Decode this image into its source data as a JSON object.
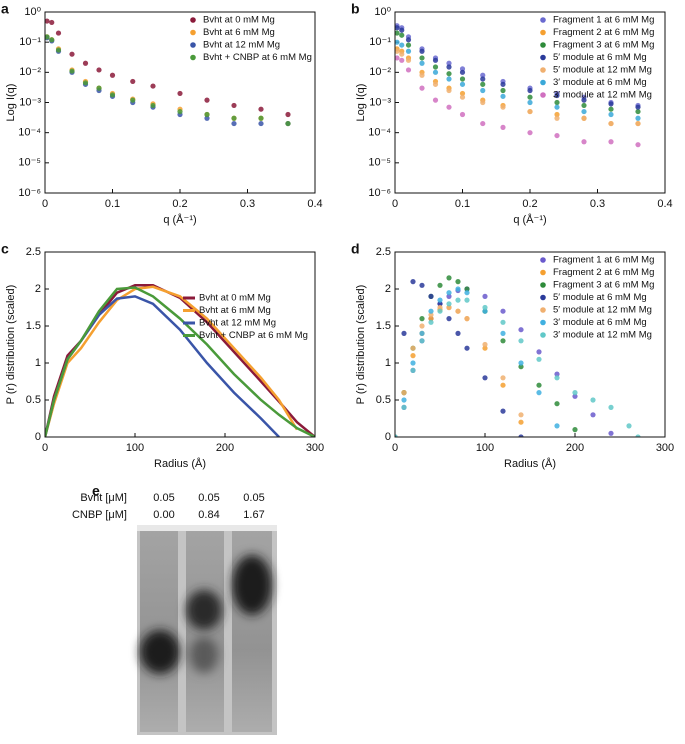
{
  "chart_data": [
    {
      "type": "scatter",
      "panel": "a",
      "ylabel": "Log I(q)",
      "xlabel": "q (Å⁻¹)",
      "ylog": true,
      "legend": "upper right",
      "xlim": [
        0,
        0.4
      ],
      "xticks": [
        0,
        0.1,
        0.2,
        0.3,
        0.4
      ],
      "ylim": [
        1e-06,
        1
      ],
      "yticks": [
        {
          "value": 1,
          "label": "10⁰"
        },
        {
          "value": 0.1,
          "label": "10⁻¹"
        },
        {
          "value": 0.01,
          "label": "10⁻²"
        },
        {
          "value": 0.001,
          "label": "10⁻³"
        },
        {
          "value": 0.0001,
          "label": "10⁻⁴"
        },
        {
          "value": 1e-05,
          "label": "10⁻⁵"
        },
        {
          "value": 1e-06,
          "label": "10⁻⁶"
        }
      ],
      "x": [
        0.003,
        0.01,
        0.02,
        0.04,
        0.06,
        0.08,
        0.1,
        0.13,
        0.16,
        0.2,
        0.24,
        0.28,
        0.32,
        0.36
      ],
      "series": [
        {
          "name": "Bvht at 0 mM Mg",
          "color": "#8b1a3a",
          "values": [
            0.5,
            0.45,
            0.2,
            0.04,
            0.02,
            0.012,
            0.008,
            0.005,
            0.0035,
            0.002,
            0.0012,
            0.0008,
            0.0006,
            0.0004
          ]
        },
        {
          "name": "Bvht at 6 mM Mg",
          "color": "#f5a030",
          "values": [
            0.15,
            0.12,
            0.06,
            0.012,
            0.005,
            0.003,
            0.002,
            0.0013,
            0.0009,
            0.0006,
            0.0004,
            0.0003,
            0.0003,
            0.0002
          ]
        },
        {
          "name": "Bvht at 12 mM Mg",
          "color": "#3a55a8",
          "values": [
            0.14,
            0.11,
            0.05,
            0.01,
            0.004,
            0.0025,
            0.0016,
            0.001,
            0.0007,
            0.0004,
            0.0003,
            0.0002,
            0.0002,
            0.0002
          ]
        },
        {
          "name": "Bvht + CNBP at 6 mM Mg",
          "color": "#4a9a3a",
          "values": [
            0.15,
            0.12,
            0.055,
            0.011,
            0.0045,
            0.003,
            0.0018,
            0.0012,
            0.0008,
            0.0005,
            0.0004,
            0.0003,
            0.0003,
            0.0002
          ]
        }
      ]
    },
    {
      "type": "scatter",
      "panel": "b",
      "ylabel": "Log I(q)",
      "xlabel": "q (Å⁻¹)",
      "ylog": true,
      "legend": "upper right",
      "xlim": [
        0,
        0.4
      ],
      "xticks": [
        0,
        0.1,
        0.2,
        0.3,
        0.4
      ],
      "ylim": [
        1e-06,
        1
      ],
      "yticks": [
        {
          "value": 1,
          "label": "10⁰"
        },
        {
          "value": 0.1,
          "label": "10⁻¹"
        },
        {
          "value": 0.01,
          "label": "10⁻²"
        },
        {
          "value": 0.001,
          "label": "10⁻³"
        },
        {
          "value": 0.0001,
          "label": "10⁻⁴"
        },
        {
          "value": 1e-05,
          "label": "10⁻⁵"
        },
        {
          "value": 1e-06,
          "label": "10⁻⁶"
        }
      ],
      "x": [
        0.003,
        0.01,
        0.02,
        0.04,
        0.06,
        0.08,
        0.1,
        0.13,
        0.16,
        0.2,
        0.24,
        0.28,
        0.32,
        0.36
      ],
      "series": [
        {
          "name": "Fragment 1 at 6 mM Mg",
          "color": "#6a6ad0",
          "values": [
            0.35,
            0.3,
            0.15,
            0.06,
            0.03,
            0.02,
            0.013,
            0.008,
            0.005,
            0.003,
            0.002,
            0.0015,
            0.001,
            0.0008
          ]
        },
        {
          "name": "Fragment 2 at 6 mM Mg",
          "color": "#f5a030",
          "values": [
            0.06,
            0.05,
            0.03,
            0.01,
            0.005,
            0.003,
            0.002,
            0.0012,
            0.0008,
            0.0005,
            0.0004,
            0.0003,
            0.0002,
            0.0002
          ]
        },
        {
          "name": "Fragment 3 at 6 mM Mg",
          "color": "#2e8b3a",
          "values": [
            0.2,
            0.17,
            0.08,
            0.03,
            0.015,
            0.009,
            0.006,
            0.004,
            0.0025,
            0.0015,
            0.001,
            0.0008,
            0.0006,
            0.0005
          ]
        },
        {
          "name": "5′ module at 6 mM Mg",
          "color": "#2a3a9a",
          "values": [
            0.3,
            0.25,
            0.12,
            0.05,
            0.025,
            0.015,
            0.01,
            0.006,
            0.004,
            0.0025,
            0.0017,
            0.0012,
            0.0009,
            0.0007
          ]
        },
        {
          "name": "5′ module at 12 mM Mg",
          "color": "#f0b070",
          "values": [
            0.05,
            0.04,
            0.025,
            0.008,
            0.004,
            0.0025,
            0.0015,
            0.001,
            0.0007,
            0.0005,
            0.0003,
            0.0003,
            0.0002,
            0.0002
          ]
        },
        {
          "name": "3′ module at 6 mM Mg",
          "color": "#3aa8d8",
          "values": [
            0.1,
            0.08,
            0.05,
            0.02,
            0.01,
            0.006,
            0.004,
            0.0025,
            0.0016,
            0.001,
            0.0007,
            0.0005,
            0.0004,
            0.0003
          ]
        },
        {
          "name": "3′ module at 12 mM Mg",
          "color": "#d070c0",
          "values": [
            0.03,
            0.025,
            0.012,
            0.003,
            0.0012,
            0.0007,
            0.0004,
            0.0002,
            0.00015,
            0.0001,
            8e-05,
            5e-05,
            5e-05,
            4e-05
          ]
        }
      ]
    },
    {
      "type": "line",
      "panel": "c",
      "ylabel": "P (r) distribution (scaled)",
      "xlabel": "Radius (Å)",
      "legend": "upper right",
      "xlim": [
        0,
        300
      ],
      "xticks": [
        0,
        100,
        200,
        300
      ],
      "ylim": [
        0,
        2.5
      ],
      "yticks": [
        0,
        0.5,
        1,
        1.5,
        2,
        2.5
      ],
      "x": [
        0,
        10,
        25,
        40,
        60,
        80,
        100,
        120,
        150,
        180,
        210,
        240,
        260,
        280,
        300
      ],
      "series": [
        {
          "name": "Bvht at 0 mM Mg",
          "color": "#8b1a3a",
          "values": [
            0,
            0.55,
            1.1,
            1.3,
            1.65,
            1.95,
            2.05,
            2.05,
            1.88,
            1.55,
            1.15,
            0.75,
            0.48,
            0.2,
            0
          ]
        },
        {
          "name": "Bvht at 6 mM Mg",
          "color": "#f5a030",
          "values": [
            0,
            0.45,
            1.0,
            1.2,
            1.55,
            1.85,
            2.0,
            2.03,
            1.9,
            1.6,
            1.2,
            0.8,
            0.5,
            0.1,
            null
          ]
        },
        {
          "name": "Bvht at 12 mM Mg",
          "color": "#3a55a8",
          "values": [
            0,
            0.5,
            1.05,
            1.3,
            1.65,
            1.87,
            1.9,
            1.8,
            1.45,
            1.0,
            0.6,
            0.25,
            0,
            null,
            null
          ]
        },
        {
          "name": "Bvht + CNBP at 6 mM Mg",
          "color": "#4a9a3a",
          "values": [
            0,
            0.5,
            1.05,
            1.3,
            1.7,
            2.0,
            2.02,
            1.9,
            1.6,
            1.25,
            0.85,
            0.5,
            0.3,
            0.12,
            0
          ]
        }
      ]
    },
    {
      "type": "scatter",
      "panel": "d",
      "ylabel": "P (r) distribution (scaled)",
      "xlabel": "Radius (Å)",
      "legend": "upper right",
      "xlim": [
        0,
        300
      ],
      "xticks": [
        0,
        100,
        200,
        300
      ],
      "ylim": [
        0,
        2.5
      ],
      "yticks": [
        0,
        0.5,
        1,
        1.5,
        2,
        2.5
      ],
      "x": [
        0,
        10,
        20,
        30,
        40,
        50,
        60,
        70,
        80,
        100,
        120,
        140,
        160,
        180,
        200,
        220,
        240,
        260,
        270
      ],
      "series": [
        {
          "name": "Fragment 1 at 6 mM Mg",
          "color": "#6a5acd",
          "values": [
            0,
            0.4,
            0.9,
            1.3,
            1.6,
            1.8,
            1.9,
            1.98,
            2.0,
            1.9,
            1.7,
            1.45,
            1.15,
            0.85,
            0.55,
            0.3,
            0.05,
            null,
            null
          ]
        },
        {
          "name": "Fragment 2 at 6 mM Mg",
          "color": "#f5a030",
          "values": [
            0,
            0.6,
            1.1,
            1.4,
            1.6,
            1.72,
            1.75,
            1.7,
            1.6,
            1.2,
            0.7,
            0.2,
            null,
            null,
            null,
            null,
            null,
            null,
            null
          ]
        },
        {
          "name": "Fragment 3 at 6 mM Mg",
          "color": "#2e8b3a",
          "values": [
            0,
            0.6,
            1.2,
            1.6,
            1.9,
            2.05,
            2.15,
            2.1,
            2.0,
            1.7,
            1.3,
            0.95,
            0.7,
            0.45,
            0.1,
            null,
            null,
            null,
            null
          ]
        },
        {
          "name": "5′ module at 6 mM Mg",
          "color": "#2a3a9a",
          "values": [
            0,
            1.4,
            2.1,
            2.05,
            1.9,
            1.8,
            1.6,
            1.4,
            1.2,
            0.8,
            0.35,
            0,
            null,
            null,
            null,
            null,
            null,
            null,
            null
          ]
        },
        {
          "name": "5′ module at 12 mM Mg",
          "color": "#f0b070",
          "values": [
            0,
            0.6,
            1.2,
            1.5,
            1.65,
            1.75,
            1.75,
            1.7,
            1.6,
            1.25,
            0.8,
            0.3,
            null,
            null,
            null,
            null,
            null,
            null,
            null
          ]
        },
        {
          "name": "3′ module at 6 mM Mg",
          "color": "#40b0e0",
          "values": [
            0,
            0.5,
            1.0,
            1.4,
            1.7,
            1.85,
            1.95,
            2.0,
            1.95,
            1.7,
            1.4,
            1.0,
            0.6,
            0.15,
            null,
            null,
            null,
            null,
            null
          ]
        },
        {
          "name": "3′ module at 12 mM Mg",
          "color": "#60c8c8",
          "values": [
            0,
            0.4,
            0.9,
            1.3,
            1.55,
            1.7,
            1.8,
            1.85,
            1.85,
            1.75,
            1.55,
            1.3,
            1.05,
            0.8,
            0.6,
            0.5,
            0.4,
            0.15,
            0
          ]
        }
      ]
    }
  ],
  "gel": {
    "panel": "e",
    "rows": [
      {
        "label": "Bvht [μM]",
        "values": [
          "0.05",
          "0.05",
          "0.05"
        ]
      },
      {
        "label": "CNBP [μM]",
        "values": [
          "0.00",
          "0.84",
          "1.67"
        ]
      }
    ]
  }
}
